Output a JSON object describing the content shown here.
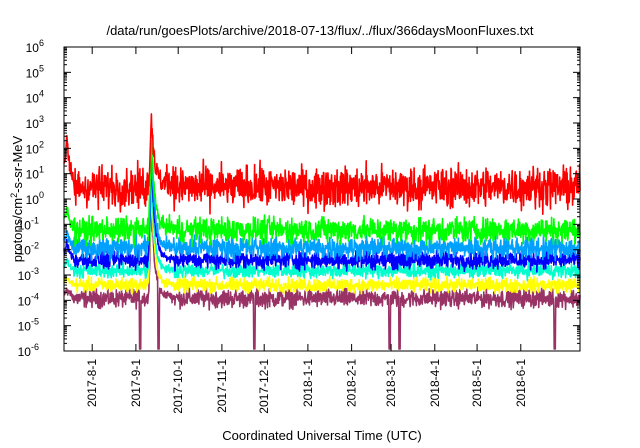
{
  "chart_data": {
    "type": "line",
    "title": "/data/run/goesPlots/archive/2018-07-13/flux/../flux/366daysMoonFluxes.txt",
    "xlabel": "Coordinated Universal Time (UTC)",
    "ylabel": {
      "base": "protons/cm",
      "sup": "2",
      "rest": "-s-sr-MeV"
    },
    "yscale": "log",
    "ylim": [
      1e-06,
      1000000.0
    ],
    "xlim": [
      "2017-07-12",
      "2018-07-13"
    ],
    "grid": false,
    "y_ticks": [
      {
        "exp": "-6",
        "value": 1e-06
      },
      {
        "exp": "-5",
        "value": 1e-05
      },
      {
        "exp": "-4",
        "value": 0.0001
      },
      {
        "exp": "-3",
        "value": 0.001
      },
      {
        "exp": "-2",
        "value": 0.01
      },
      {
        "exp": "-1",
        "value": 0.1
      },
      {
        "exp": "0",
        "value": 1
      },
      {
        "exp": "1",
        "value": 10
      },
      {
        "exp": "2",
        "value": 100
      },
      {
        "exp": "3",
        "value": 1000
      },
      {
        "exp": "4",
        "value": 10000
      },
      {
        "exp": "5",
        "value": 100000
      },
      {
        "exp": "6",
        "value": 1000000
      }
    ],
    "y_tick_base": "10",
    "x_ticks": [
      {
        "label": "2017-8-1",
        "date": "2017-08-01"
      },
      {
        "label": "2017-9-1",
        "date": "2017-09-01"
      },
      {
        "label": "2017-10-1",
        "date": "2017-10-01"
      },
      {
        "label": "2017-11-1",
        "date": "2017-11-01"
      },
      {
        "label": "2017-12-1",
        "date": "2017-12-01"
      },
      {
        "label": "2018-1-1",
        "date": "2018-01-01"
      },
      {
        "label": "2018-2-1",
        "date": "2018-02-01"
      },
      {
        "label": "2018-3-1",
        "date": "2018-03-01"
      },
      {
        "label": "2018-4-1",
        "date": "2018-04-01"
      },
      {
        "label": "2018-5-1",
        "date": "2018-05-01"
      },
      {
        "label": "2018-6-1",
        "date": "2018-06-01"
      }
    ],
    "series": [
      {
        "color": "#ff0000",
        "baseline": 3.0,
        "noise": 0.55,
        "peak": 2000,
        "early_peak": 400
      },
      {
        "color": "#00ff00",
        "baseline": 0.06,
        "noise": 0.35,
        "peak": 300,
        "early_peak": 0.5
      },
      {
        "color": "#00a0ff",
        "baseline": 0.012,
        "noise": 0.3,
        "peak": 80,
        "early_peak": 0.05
      },
      {
        "color": "#0000ff",
        "baseline": 0.004,
        "noise": 0.25,
        "peak": 40,
        "early_peak": 0.02
      },
      {
        "color": "#00ffcc",
        "baseline": 0.0015,
        "noise": 0.2,
        "peak": 5,
        "early_peak": 0.004
      },
      {
        "color": "#ffff00",
        "baseline": 0.0004,
        "noise": 0.2,
        "peak": 2,
        "early_peak": 0.0008
      },
      {
        "color": "#993366",
        "baseline": 0.00012,
        "noise": 0.25,
        "peak": 0.5,
        "early_peak": 0.0003
      }
    ],
    "event": {
      "start": "2017-09-10",
      "end": "2017-09-16"
    },
    "early_event": "2017-07-14",
    "dips": [
      "2017-09-04",
      "2017-09-17",
      "2017-11-24",
      "2018-02-28",
      "2018-03-07",
      "2018-06-25"
    ]
  }
}
